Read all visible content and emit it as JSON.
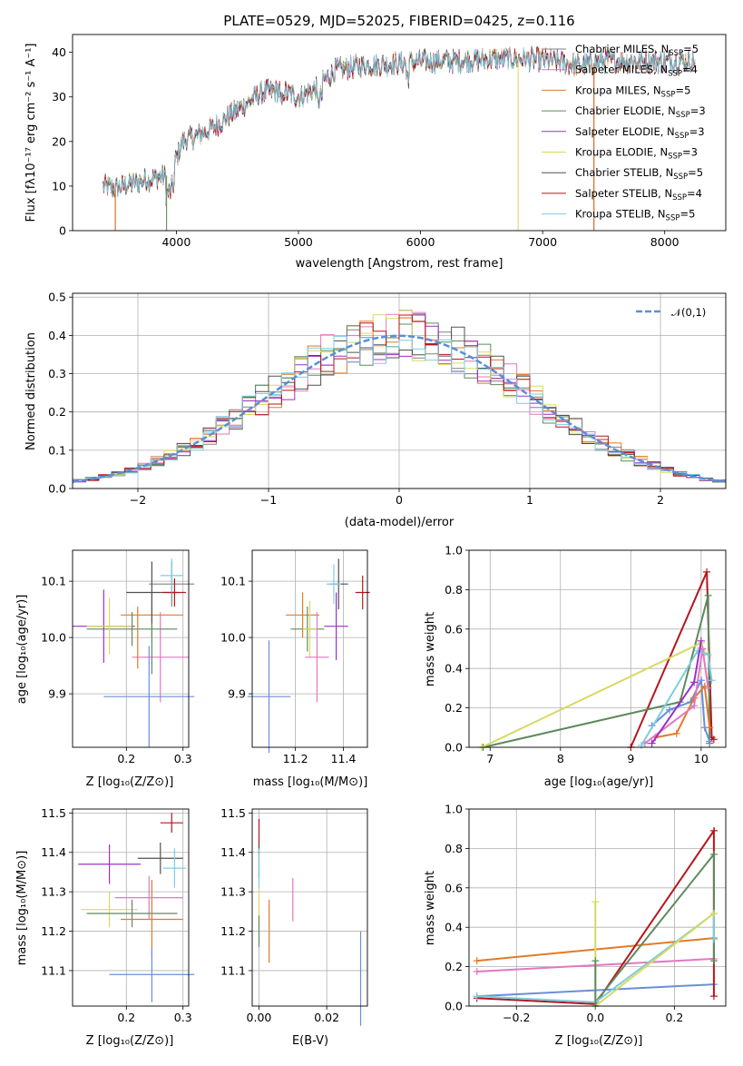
{
  "colors": {
    "Chabrier MILES": "#808080",
    "Salpeter MILES": "#e377c2",
    "Kroupa MILES": "#e07b28",
    "Chabrier ELODIE": "#5e8a5e",
    "Salpeter ELODIE": "#9b30c9",
    "Kroupa ELODIE": "#d9d960",
    "Chabrier STELIB": "#505050",
    "Salpeter STELIB": "#b5161c",
    "Kroupa STELIB": "#7ccde0",
    "N01": "#5a8fd6",
    "Z_blue": "#6a8fd8"
  },
  "chart_data": [
    {
      "id": "spectrum",
      "type": "line",
      "title": "PLATE=0529, MJD=52025, FIBERID=0425, z=0.116",
      "xlabel": "wavelength [Angstrom, rest frame]",
      "ylabel": "Flux [f",
      "ylabel_full": "Flux [fλ10⁻¹⁷ erg cm⁻² s⁻¹ A⁻¹]",
      "xlim": [
        3150,
        8500
      ],
      "ylim": [
        0,
        44
      ],
      "xticks": [
        4000,
        5000,
        6000,
        7000,
        8000
      ],
      "yticks": [
        0,
        10,
        20,
        30,
        40
      ],
      "continuum_x": [
        3400,
        3500,
        3700,
        3850,
        3950,
        4050,
        4150,
        4300,
        4500,
        4700,
        4850,
        5000,
        5150,
        5300,
        5500,
        5800,
        6000,
        6300,
        6600,
        6900,
        7100,
        7300,
        7500,
        7700,
        7900,
        8100,
        8250
      ],
      "continuum_y": [
        10,
        9.5,
        11,
        12,
        12.5,
        20,
        21,
        23,
        27,
        31,
        31.5,
        30,
        32,
        36,
        37,
        37.5,
        38,
        38,
        38.5,
        38.5,
        38,
        37,
        38,
        38,
        38,
        38,
        38
      ],
      "legend": [
        {
          "label": "Chabrier MILES, N",
          "sub": "SSP",
          "n": "=5"
        },
        {
          "label": "Salpeter MILES, N",
          "sub": "SSP",
          "n": "=4"
        },
        {
          "label": "Kroupa MILES, N",
          "sub": "SSP",
          "n": "=5"
        },
        {
          "label": "Chabrier ELODIE, N",
          "sub": "SSP",
          "n": "=3"
        },
        {
          "label": "Salpeter ELODIE, N",
          "sub": "SSP",
          "n": "=3"
        },
        {
          "label": "Kroupa ELODIE, N",
          "sub": "SSP",
          "n": "=3"
        },
        {
          "label": "Chabrier STELIB, N",
          "sub": "SSP",
          "n": "=5"
        },
        {
          "label": "Salpeter STELIB, N",
          "sub": "SSP",
          "n": "=4"
        },
        {
          "label": "Kroupa STELIB, N",
          "sub": "SSP",
          "n": "=5"
        }
      ],
      "series_models": [
        "Chabrier MILES",
        "Salpeter MILES",
        "Kroupa MILES",
        "Chabrier ELODIE",
        "Salpeter ELODIE",
        "Kroupa ELODIE",
        "Chabrier STELIB",
        "Salpeter STELIB",
        "Kroupa STELIB"
      ],
      "drops": [
        {
          "model": "Salpeter STELIB",
          "x": 3500,
          "bottom": 0
        },
        {
          "model": "Kroupa MILES",
          "x": 3500,
          "bottom": 0
        },
        {
          "model": "Kroupa ELODIE",
          "x": 3920,
          "bottom": 0
        },
        {
          "model": "Chabrier ELODIE",
          "x": 3920,
          "bottom": 0
        },
        {
          "model": "Kroupa ELODIE",
          "x": 6800,
          "bottom": 0
        },
        {
          "model": "Salpeter STELIB",
          "x": 7420,
          "bottom": 0
        },
        {
          "model": "Kroupa MILES",
          "x": 7420,
          "bottom": 0
        }
      ]
    },
    {
      "id": "residuals",
      "type": "histogram",
      "xlabel": "(data-model)/error",
      "ylabel": "Normed distribution",
      "xlim": [
        -2.5,
        2.5
      ],
      "ylim": [
        0,
        0.51
      ],
      "xticks": [
        -2,
        -1,
        0,
        1,
        2
      ],
      "xticklabels": [
        "−2",
        "−1",
        "0",
        "1",
        "2"
      ],
      "yticks": [
        0.0,
        0.1,
        0.2,
        0.3,
        0.4,
        0.5
      ],
      "yticklabels": [
        "0.0",
        "0.1",
        "0.2",
        "0.3",
        "0.4",
        "0.5"
      ],
      "grid": true,
      "bin_width": 0.1,
      "legend": {
        "label": "𝒩(0,1)",
        "placement": "top-right"
      },
      "overlay": "standard normal, dashed"
    },
    {
      "id": "age_vs_Z",
      "type": "errorbar",
      "xlabel": "Z [log",
      "xlabel_full": "Z [log₁₀(Z/Z⊙)]",
      "ylabel_full": "age  [log₁₀(age/yr)]",
      "xlim": [
        0.105,
        0.31
      ],
      "ylim": [
        9.805,
        10.155
      ],
      "xticks": [
        0.2,
        0.3
      ],
      "xticklabels": [
        "0.2",
        "0.3"
      ],
      "yticks": [
        9.9,
        10.0,
        10.1
      ],
      "yticklabels": [
        "9.9",
        "10.0",
        "10.1"
      ],
      "points": [
        {
          "model": "Chabrier MILES",
          "x": 0.28,
          "xerr": 0.04,
          "y": 10.095,
          "yerr": 0.04
        },
        {
          "model": "Salpeter MILES",
          "x": 0.26,
          "xerr": 0.05,
          "y": 9.965,
          "yerr": 0.08
        },
        {
          "model": "Kroupa MILES",
          "x": 0.245,
          "xerr": 0.055,
          "y": 10.04,
          "yerr": 0.04
        },
        {
          "model": "Chabrier ELODIE",
          "x": 0.21,
          "xerr": 0.08,
          "y": 10.015,
          "yerr": 0.03
        },
        {
          "model": "Salpeter ELODIE",
          "x": 0.16,
          "xerr": 0.055,
          "y": 10.02,
          "yerr": 0.065
        },
        {
          "model": "Kroupa ELODIE",
          "x": 0.17,
          "xerr": 0.04,
          "y": 10.02,
          "yerr": 0.05
        },
        {
          "model": "Chabrier STELIB",
          "x": 0.245,
          "xerr": 0.045,
          "y": 10.08,
          "yerr": 0.055
        },
        {
          "model": "Salpeter STELIB",
          "x": 0.285,
          "xerr": 0.02,
          "y": 10.08,
          "yerr": 0.025
        },
        {
          "model": "Kroupa STELIB",
          "x": 0.28,
          "xerr": 0.02,
          "y": 10.11,
          "yerr": 0.03
        },
        {
          "model": "Z_blue",
          "x": 0.24,
          "xerr": 0.08,
          "y": 9.895,
          "yerr": 0.09
        },
        {
          "model": "Kroupa MILES",
          "x": 0.22,
          "xerr": 0.0,
          "y": 10.0,
          "yerr": 0.055
        },
        {
          "model": "Chabrier ELODIE",
          "x": 0.245,
          "xerr": 0.0,
          "y": 9.98,
          "yerr": 0.045
        }
      ]
    },
    {
      "id": "age_vs_mass",
      "type": "errorbar",
      "xlabel_full": "mass [log₁₀(M/M⊙)]",
      "xlim": [
        11.02,
        11.5
      ],
      "ylim": [
        9.805,
        10.155
      ],
      "xticks": [
        11.2,
        11.4
      ],
      "xticklabels": [
        "11.2",
        "11.4"
      ],
      "yticks": [
        9.9,
        10.0,
        10.1
      ],
      "yticklabels": [
        "9.9",
        "10.0",
        "10.1"
      ],
      "points": [
        {
          "model": "Z_blue",
          "x": 11.09,
          "xerr": 0.09,
          "y": 9.895,
          "yerr": 0.1
        },
        {
          "model": "Kroupa MILES",
          "x": 11.23,
          "xerr": 0.07,
          "y": 10.04,
          "yerr": 0.04
        },
        {
          "model": "Chabrier ELODIE",
          "x": 11.25,
          "xerr": 0.07,
          "y": 10.015,
          "yerr": 0.04
        },
        {
          "model": "Kroupa ELODIE",
          "x": 11.26,
          "xerr": 0.03,
          "y": 10.015,
          "yerr": 0.05
        },
        {
          "model": "Salpeter MILES",
          "x": 11.29,
          "xerr": 0.05,
          "y": 9.965,
          "yerr": 0.08
        },
        {
          "model": "Salpeter ELODIE",
          "x": 11.37,
          "xerr": 0.05,
          "y": 10.02,
          "yerr": 0.06
        },
        {
          "model": "Chabrier STELIB",
          "x": 11.38,
          "xerr": 0.04,
          "y": 10.095,
          "yerr": 0.045
        },
        {
          "model": "Kroupa STELIB",
          "x": 11.36,
          "xerr": 0.03,
          "y": 10.095,
          "yerr": 0.035
        },
        {
          "model": "Salpeter STELIB",
          "x": 11.48,
          "xerr": 0.03,
          "y": 10.08,
          "yerr": 0.03
        }
      ]
    },
    {
      "id": "massweight_vs_age",
      "type": "line",
      "xlabel_full": "age  [log₁₀(age/yr)]",
      "ylabel": "mass weight",
      "xlim": [
        6.7,
        10.35
      ],
      "ylim": [
        0,
        1.0
      ],
      "xticks": [
        7,
        8,
        9,
        10
      ],
      "yticks": [
        0.0,
        0.2,
        0.4,
        0.6,
        0.8,
        1.0
      ],
      "yticklabels": [
        "0.0",
        "0.2",
        "0.4",
        "0.6",
        "0.8",
        "1.0"
      ],
      "series": [
        {
          "model": "Salpeter STELIB",
          "x": [
            9.0,
            10.08,
            10.15,
            10.18
          ],
          "y": [
            0.0,
            0.89,
            0.05,
            0.04
          ]
        },
        {
          "model": "Chabrier ELODIE",
          "x": [
            6.9,
            9.7,
            10.1,
            10.12
          ],
          "y": [
            0.0,
            0.23,
            0.77,
            0.02
          ]
        },
        {
          "model": "Kroupa ELODIE",
          "x": [
            6.88,
            10.0,
            10.05
          ],
          "y": [
            0.0,
            0.53,
            0.48
          ]
        },
        {
          "model": "Z_blue",
          "x": [
            9.3,
            9.55,
            9.85,
            10.0,
            10.05,
            10.12
          ],
          "y": [
            0.11,
            0.19,
            0.23,
            0.34,
            0.1,
            0.03
          ]
        },
        {
          "model": "Kroupa MILES",
          "x": [
            9.35,
            9.65,
            9.9,
            10.05,
            10.12
          ],
          "y": [
            0.05,
            0.07,
            0.25,
            0.31,
            0.1
          ]
        },
        {
          "model": "Salpeter MILES",
          "x": [
            9.2,
            9.9,
            10.02,
            10.1
          ],
          "y": [
            0.02,
            0.21,
            0.5,
            0.3
          ]
        },
        {
          "model": "Kroupa STELIB",
          "x": [
            9.15,
            9.95,
            10.1,
            10.15
          ],
          "y": [
            0.01,
            0.49,
            0.47,
            0.34
          ]
        },
        {
          "model": "Salpeter ELODIE",
          "x": [
            9.3,
            9.9,
            10.0
          ],
          "y": [
            0.02,
            0.33,
            0.54
          ]
        }
      ]
    },
    {
      "id": "mass_vs_Z",
      "type": "errorbar",
      "xlabel_full": "Z [log₁₀(Z/Z⊙)]",
      "ylabel_full": "mass [log₁₀(M/M⊙)]",
      "xlim": [
        0.105,
        0.31
      ],
      "ylim": [
        11.01,
        11.51
      ],
      "xticks": [
        0.2,
        0.3
      ],
      "xticklabels": [
        "0.2",
        "0.3"
      ],
      "yticks": [
        11.1,
        11.2,
        11.3,
        11.4,
        11.5
      ],
      "yticklabels": [
        "11.1",
        "11.2",
        "11.3",
        "11.4",
        "11.5"
      ],
      "points": [
        {
          "model": "Salpeter STELIB",
          "x": 0.28,
          "xerr": 0.02,
          "y": 11.475,
          "yerr": 0.025
        },
        {
          "model": "Chabrier STELIB",
          "x": 0.26,
          "xerr": 0.04,
          "y": 11.385,
          "yerr": 0.04
        },
        {
          "model": "Salpeter ELODIE",
          "x": 0.17,
          "xerr": 0.055,
          "y": 11.37,
          "yerr": 0.05
        },
        {
          "model": "Kroupa STELIB",
          "x": 0.285,
          "xerr": 0.02,
          "y": 11.36,
          "yerr": 0.05
        },
        {
          "model": "Salpeter MILES",
          "x": 0.24,
          "xerr": 0.06,
          "y": 11.285,
          "yerr": 0.055
        },
        {
          "model": "Kroupa ELODIE",
          "x": 0.17,
          "xerr": 0.05,
          "y": 11.255,
          "yerr": 0.045
        },
        {
          "model": "Chabrier ELODIE",
          "x": 0.21,
          "xerr": 0.08,
          "y": 11.245,
          "yerr": 0.035
        },
        {
          "model": "Kroupa MILES",
          "x": 0.245,
          "xerr": 0.055,
          "y": 11.23,
          "yerr": 0.1
        },
        {
          "model": "Z_blue",
          "x": 0.245,
          "xerr": 0.075,
          "y": 11.09,
          "yerr": 0.07
        }
      ]
    },
    {
      "id": "mass_vs_EBV",
      "type": "errorbar",
      "xlabel": "E(B-V)",
      "xlim": [
        -0.002,
        0.032
      ],
      "ylim": [
        11.01,
        11.51
      ],
      "xticks": [
        0.0,
        0.02
      ],
      "xticklabels": [
        "0.00",
        "0.02"
      ],
      "yticks": [
        11.1,
        11.2,
        11.3,
        11.4,
        11.5
      ],
      "yticklabels": [
        "11.1",
        "11.2",
        "11.3",
        "11.4",
        "11.5"
      ],
      "points": [
        {
          "model": "Salpeter STELIB",
          "x": 0.0,
          "xerr": 0.0,
          "y": 11.44,
          "yerr": 0.045
        },
        {
          "model": "Chabrier STELIB",
          "x": 0.0,
          "xerr": 0.0,
          "y": 11.38,
          "yerr": 0.045
        },
        {
          "model": "Kroupa STELIB",
          "x": 0.0,
          "xerr": 0.0,
          "y": 11.36,
          "yerr": 0.05
        },
        {
          "model": "Kroupa ELODIE",
          "x": 0.0,
          "xerr": 0.0,
          "y": 11.255,
          "yerr": 0.05
        },
        {
          "model": "Chabrier ELODIE",
          "x": 0.0,
          "xerr": 0.0,
          "y": 11.2,
          "yerr": 0.04
        },
        {
          "model": "Salpeter MILES",
          "x": 0.01,
          "xerr": 0.0,
          "y": 11.28,
          "yerr": 0.055
        },
        {
          "model": "Kroupa MILES",
          "x": 0.003,
          "xerr": 0.0,
          "y": 11.2,
          "yerr": 0.08
        },
        {
          "model": "Z_blue",
          "x": 0.03,
          "xerr": 0.0,
          "y": 11.08,
          "yerr": 0.12
        }
      ]
    },
    {
      "id": "massweight_vs_Z",
      "type": "line",
      "xlabel_full": "Z [log₁₀(Z/Z⊙)]",
      "ylabel": "mass weight",
      "xlim": [
        -0.32,
        0.33
      ],
      "ylim": [
        0,
        1.0
      ],
      "xticks": [
        -0.2,
        0.0,
        0.2
      ],
      "xticklabels": [
        "−0.2",
        "0.0",
        "0.2"
      ],
      "yticks": [
        0.0,
        0.2,
        0.4,
        0.6,
        0.8,
        1.0
      ],
      "yticklabels": [
        "0.0",
        "0.2",
        "0.4",
        "0.6",
        "0.8",
        "1.0"
      ],
      "series": [
        {
          "model": "Kroupa MILES",
          "x": [
            -0.3,
            0.3
          ],
          "y": [
            0.23,
            0.345
          ]
        },
        {
          "model": "Salpeter MILES",
          "x": [
            -0.3,
            0.3
          ],
          "y": [
            0.175,
            0.24
          ]
        },
        {
          "model": "Z_blue",
          "x": [
            -0.3,
            0.0,
            0.3
          ],
          "y": [
            0.05,
            0.08,
            0.11
          ]
        },
        {
          "model": "Salpeter STELIB",
          "x": [
            -0.3,
            0.0,
            0.3,
            0.3
          ],
          "y": [
            0.04,
            0.01,
            0.89,
            0.05
          ]
        },
        {
          "model": "Chabrier ELODIE",
          "x": [
            0.0,
            0.3,
            0.3
          ],
          "y": [
            0.02,
            0.77,
            0.23
          ]
        },
        {
          "model": "Kroupa STELIB",
          "x": [
            -0.3,
            0.0,
            0.3,
            0.3
          ],
          "y": [
            0.05,
            0.02,
            0.47,
            0.34
          ]
        },
        {
          "model": "Kroupa ELODIE",
          "x": [
            0.0,
            0.0,
            0.3
          ],
          "y": [
            0.53,
            0.0,
            0.47
          ]
        },
        {
          "model": "Chabrier ELODIE",
          "x": [
            0.0,
            0.0
          ],
          "y": [
            0.0,
            0.23
          ]
        }
      ]
    }
  ]
}
